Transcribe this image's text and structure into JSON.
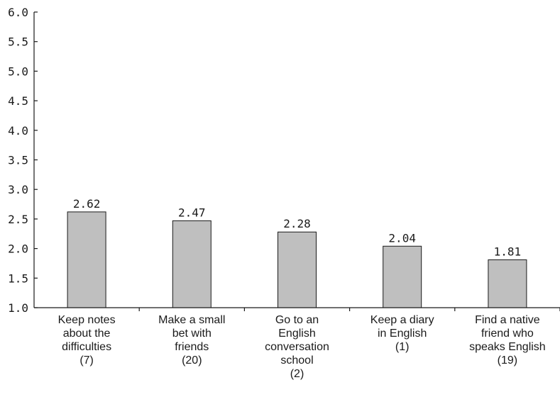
{
  "chart_data": {
    "type": "bar",
    "title": "",
    "xlabel": "",
    "ylabel": "",
    "ylim": [
      1.0,
      6.0
    ],
    "yticks": [
      "1.0",
      "1.5",
      "2.0",
      "2.5",
      "3.0",
      "3.5",
      "4.0",
      "4.5",
      "5.0",
      "5.5",
      "6.0"
    ],
    "grid": false,
    "categories": [
      [
        "Keep notes",
        "about the",
        "difficulties",
        "(7)"
      ],
      [
        "Make a small",
        "bet with",
        "friends",
        "(20)"
      ],
      [
        "Go to an",
        "English",
        "conversation",
        "school",
        "(2)"
      ],
      [
        "Keep a diary",
        "in English",
        "(1)"
      ],
      [
        "Find a native",
        "friend who",
        "speaks English",
        "(19)"
      ]
    ],
    "values": [
      2.62,
      2.47,
      2.28,
      2.04,
      1.81
    ],
    "data_labels": [
      "2.62",
      "2.47",
      "2.28",
      "2.04",
      "1.81"
    ],
    "bar_color": "#bfbfbf",
    "bar_edge_color": "#1a1a1a"
  }
}
